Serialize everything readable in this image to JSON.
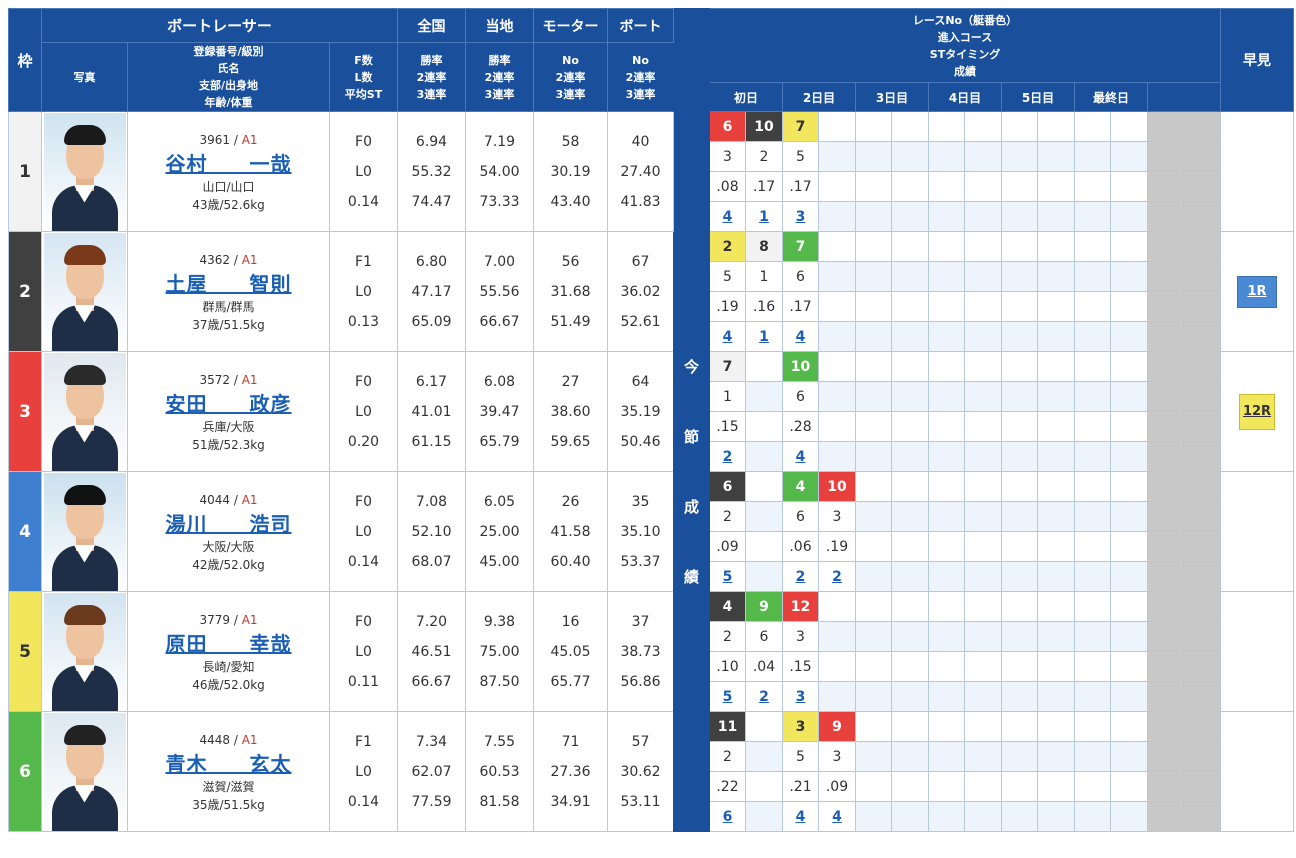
{
  "headers": {
    "waku": "枠",
    "racer": "ボートレーサー",
    "photo": "写真",
    "profile_lines": [
      "登録番号/級別",
      "氏名",
      "支部/出身地",
      "年齢/体重"
    ],
    "fl_lines": [
      "F数",
      "L数",
      "平均ST"
    ],
    "zenkoku": "全国",
    "touchi": "当地",
    "motor": "モーター",
    "boat": "ボート",
    "rate_lines": [
      "勝率",
      "2連率",
      "3連率"
    ],
    "no_lines": [
      "No",
      "2連率",
      "3連率"
    ],
    "series_lines": [
      "レースNo（艇番色）",
      "進入コース",
      "STタイミング",
      "成績"
    ],
    "early": "早見",
    "days": [
      "初日",
      "2日目",
      "3日目",
      "4日目",
      "5日目",
      "最終日"
    ],
    "konsetsu": [
      "今",
      "節",
      "成",
      "績"
    ]
  },
  "racers": [
    {
      "waku": "1",
      "reg": "3961",
      "cls": "A1",
      "name": "谷村　　一哉",
      "branch": "山口/山口",
      "age_weight": "43歳/52.6kg",
      "f": "F0",
      "l": "L0",
      "st": "0.14",
      "zen": [
        "6.94",
        "55.32",
        "74.47"
      ],
      "tou": [
        "7.19",
        "54.00",
        "73.33"
      ],
      "motor": [
        "58",
        "30.19",
        "43.40"
      ],
      "boat": [
        "40",
        "27.40",
        "41.83"
      ],
      "races": [
        {
          "no": "6",
          "c": "c3",
          "course": "3",
          "st": ".08",
          "rank": "4"
        },
        {
          "no": "10",
          "c": "c2",
          "course": "2",
          "st": ".17",
          "rank": "1"
        },
        {
          "no": "7",
          "c": "c5",
          "course": "5",
          "st": ".17",
          "rank": "3"
        }
      ],
      "early": ""
    },
    {
      "waku": "2",
      "reg": "4362",
      "cls": "A1",
      "name": "土屋　　智則",
      "branch": "群馬/群馬",
      "age_weight": "37歳/51.5kg",
      "f": "F1",
      "l": "L0",
      "st": "0.13",
      "zen": [
        "6.80",
        "47.17",
        "65.09"
      ],
      "tou": [
        "7.00",
        "55.56",
        "66.67"
      ],
      "motor": [
        "56",
        "31.68",
        "51.49"
      ],
      "boat": [
        "67",
        "36.02",
        "52.61"
      ],
      "races": [
        {
          "no": "2",
          "c": "c5",
          "course": "5",
          "st": ".19",
          "rank": "4"
        },
        {
          "no": "8",
          "c": "c1",
          "course": "1",
          "st": ".16",
          "rank": "1"
        },
        {
          "no": "7",
          "c": "c6",
          "course": "6",
          "st": ".17",
          "rank": "4"
        }
      ],
      "early": "1R"
    },
    {
      "waku": "3",
      "reg": "3572",
      "cls": "A1",
      "name": "安田　　政彦",
      "branch": "兵庫/大阪",
      "age_weight": "51歳/52.3kg",
      "f": "F0",
      "l": "L0",
      "st": "0.20",
      "zen": [
        "6.17",
        "41.01",
        "61.15"
      ],
      "tou": [
        "6.08",
        "39.47",
        "65.79"
      ],
      "motor": [
        "27",
        "38.60",
        "59.65"
      ],
      "boat": [
        "64",
        "35.19",
        "50.46"
      ],
      "races": [
        {
          "no": "7",
          "c": "c1",
          "course": "1",
          "st": ".15",
          "rank": "2"
        },
        {
          "no": "",
          "c": "",
          "course": "",
          "st": "",
          "rank": ""
        },
        {
          "no": "10",
          "c": "c6",
          "course": "6",
          "st": ".28",
          "rank": "4"
        }
      ],
      "early": "12R"
    },
    {
      "waku": "4",
      "reg": "4044",
      "cls": "A1",
      "name": "湯川　　浩司",
      "branch": "大阪/大阪",
      "age_weight": "42歳/52.0kg",
      "f": "F0",
      "l": "L0",
      "st": "0.14",
      "zen": [
        "7.08",
        "52.10",
        "68.07"
      ],
      "tou": [
        "6.05",
        "25.00",
        "45.00"
      ],
      "motor": [
        "26",
        "41.58",
        "60.40"
      ],
      "boat": [
        "35",
        "35.10",
        "53.37"
      ],
      "races": [
        {
          "no": "6",
          "c": "c2",
          "course": "2",
          "st": ".09",
          "rank": "5"
        },
        {
          "no": "",
          "c": "",
          "course": "",
          "st": "",
          "rank": ""
        },
        {
          "no": "4",
          "c": "c6",
          "course": "6",
          "st": ".06",
          "rank": "2"
        },
        {
          "no": "10",
          "c": "c3",
          "course": "3",
          "st": ".19",
          "rank": "2"
        }
      ],
      "early": ""
    },
    {
      "waku": "5",
      "reg": "3779",
      "cls": "A1",
      "name": "原田　　幸哉",
      "branch": "長崎/愛知",
      "age_weight": "46歳/52.0kg",
      "f": "F0",
      "l": "L0",
      "st": "0.11",
      "zen": [
        "7.20",
        "46.51",
        "66.67"
      ],
      "tou": [
        "9.38",
        "75.00",
        "87.50"
      ],
      "motor": [
        "16",
        "45.05",
        "65.77"
      ],
      "boat": [
        "37",
        "38.73",
        "56.86"
      ],
      "races": [
        {
          "no": "4",
          "c": "c2",
          "course": "2",
          "st": ".10",
          "rank": "5"
        },
        {
          "no": "9",
          "c": "c6",
          "course": "6",
          "st": ".04",
          "rank": "2"
        },
        {
          "no": "12",
          "c": "c3",
          "course": "3",
          "st": ".15",
          "rank": "3"
        }
      ],
      "early": ""
    },
    {
      "waku": "6",
      "reg": "4448",
      "cls": "A1",
      "name": "青木　　玄太",
      "branch": "滋賀/滋賀",
      "age_weight": "35歳/51.5kg",
      "f": "F1",
      "l": "L0",
      "st": "0.14",
      "zen": [
        "7.34",
        "62.07",
        "77.59"
      ],
      "tou": [
        "7.55",
        "60.53",
        "81.58"
      ],
      "motor": [
        "71",
        "27.36",
        "34.91"
      ],
      "boat": [
        "57",
        "30.62",
        "53.11"
      ],
      "races": [
        {
          "no": "11",
          "c": "c2",
          "course": "2",
          "st": ".22",
          "rank": "6"
        },
        {
          "no": "",
          "c": "",
          "course": "",
          "st": "",
          "rank": ""
        },
        {
          "no": "3",
          "c": "c5",
          "course": "5",
          "st": ".21",
          "rank": "4"
        },
        {
          "no": "9",
          "c": "c3",
          "course": "3",
          "st": ".09",
          "rank": "4"
        }
      ],
      "early": ""
    }
  ]
}
